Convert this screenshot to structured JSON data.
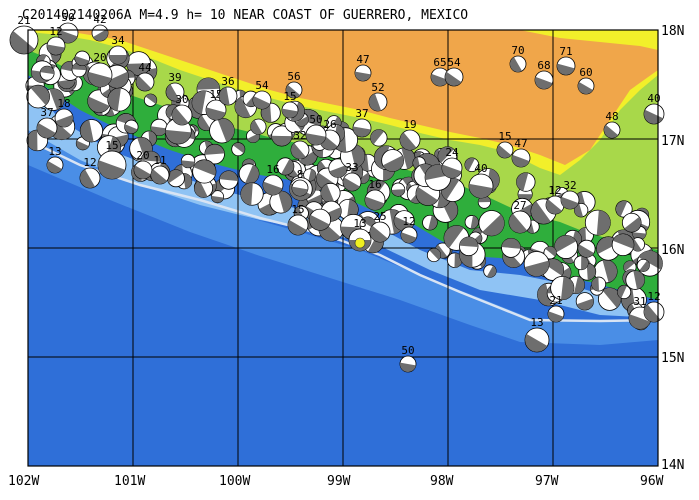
{
  "title": "C201402140206A M=4.9 h= 10 NEAR COAST OF GUERRERO, MEXICO",
  "colors": {
    "deep_ocean": "#2f6fd8",
    "mid_ocean": "#4a8ee6",
    "shelf": "#8fc3f4",
    "coast_green": "#2fae3c",
    "light_green": "#a8d84a",
    "yellow": "#f2ef2a",
    "highland": "#f0a64a",
    "grid": "#000000",
    "trench": "#d8e4f4",
    "mechanism_dark": "#6e6e6e",
    "mechanism_light": "#ffffff",
    "highlight_event": "#f0f020"
  },
  "axes": {
    "lon_labels": [
      "102W",
      "101W",
      "100W",
      "99W",
      "98W",
      "97W",
      "96W"
    ],
    "lat_labels": [
      "18N",
      "17N",
      "16N",
      "15N",
      "14N"
    ]
  },
  "depth_labels": [
    "21",
    "50",
    "42",
    "12",
    "34",
    "20",
    "37",
    "18",
    "44",
    "39",
    "15",
    "36",
    "54",
    "56",
    "15",
    "30",
    "47",
    "52",
    "65",
    "54",
    "70",
    "71",
    "68",
    "60",
    "48",
    "40",
    "37",
    "19",
    "47",
    "15",
    "40",
    "24",
    "26",
    "32",
    "50",
    "13",
    "12",
    "15",
    "20",
    "11",
    "16",
    "8",
    "33",
    "27",
    "12",
    "32",
    "16",
    "25",
    "15",
    "13",
    "12",
    "31",
    "12",
    "13"
  ]
}
